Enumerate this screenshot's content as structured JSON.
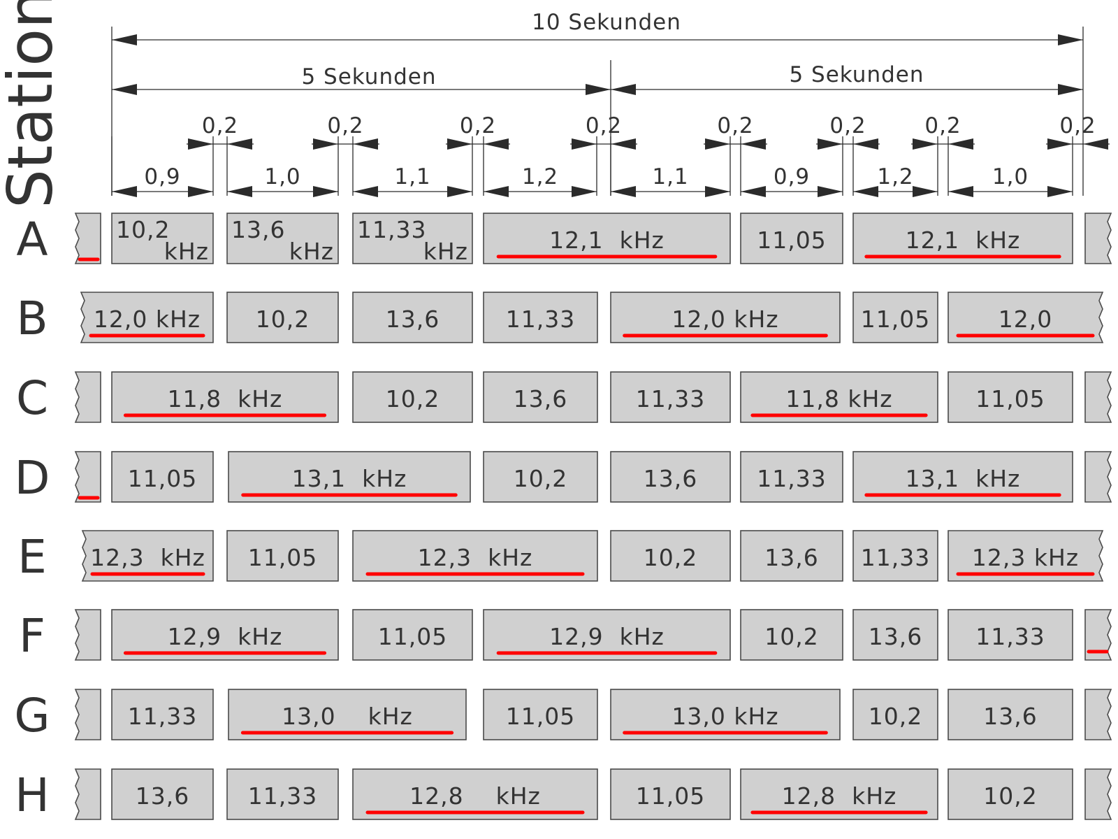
{
  "axis_label": "Station",
  "total_label": "10 Sekunden",
  "half_labels": [
    "5 Sekunden",
    "5 Sekunden"
  ],
  "gap_label": "0,2",
  "durations": [
    "0,9",
    "1,0",
    "1,1",
    "1,2",
    "1,1",
    "0,9",
    "1,2",
    "1,0"
  ],
  "stations": [
    {
      "label": "A",
      "cells": [
        {
          "text": "10,2",
          "sub": "kHz"
        },
        {
          "text": "13,6",
          "sub": "kHz"
        },
        {
          "text": "11,33",
          "sub": "kHz"
        },
        {
          "text": "12,1  kHz",
          "highlight": true
        },
        {
          "text": "11,05"
        },
        {
          "text": "12,1  kHz",
          "highlight": true
        }
      ]
    },
    {
      "label": "B",
      "cells": [
        {
          "text": "12,0 kHz",
          "highlight": true
        },
        {
          "text": "10,2"
        },
        {
          "text": "13,6"
        },
        {
          "text": "11,33"
        },
        {
          "text": "12,0 kHz",
          "highlight": true
        },
        {
          "text": "11,05"
        },
        {
          "text": "12,0",
          "highlight": true
        }
      ]
    },
    {
      "label": "C",
      "cells": [
        {
          "text": "11,8  kHz",
          "highlight": true
        },
        {
          "text": "10,2"
        },
        {
          "text": "13,6"
        },
        {
          "text": "11,33"
        },
        {
          "text": "11,8 kHz",
          "highlight": true
        },
        {
          "text": "11,05"
        }
      ]
    },
    {
      "label": "D",
      "cells": [
        {
          "text": "11,05"
        },
        {
          "text": "13,1  kHz",
          "highlight": true
        },
        {
          "text": "10,2"
        },
        {
          "text": "13,6"
        },
        {
          "text": "11,33"
        },
        {
          "text": "13,1  kHz",
          "highlight": true
        }
      ]
    },
    {
      "label": "E",
      "cells": [
        {
          "text": "12,3  kHz",
          "highlight": true
        },
        {
          "text": "11,05"
        },
        {
          "text": "12,3  kHz",
          "highlight": true
        },
        {
          "text": "10,2"
        },
        {
          "text": "13,6"
        },
        {
          "text": "11,33"
        },
        {
          "text": "12,3 kHz",
          "highlight": true
        }
      ]
    },
    {
      "label": "F",
      "cells": [
        {
          "text": "12,9  kHz",
          "highlight": true
        },
        {
          "text": "11,05"
        },
        {
          "text": "12,9  kHz",
          "highlight": true
        },
        {
          "text": "10,2"
        },
        {
          "text": "13,6"
        },
        {
          "text": "11,33"
        }
      ]
    },
    {
      "label": "G",
      "cells": [
        {
          "text": "11,33"
        },
        {
          "text": "13,0    kHz",
          "highlight": true
        },
        {
          "text": "11,05"
        },
        {
          "text": "13,0 kHz",
          "highlight": true
        },
        {
          "text": "10,2"
        },
        {
          "text": "13,6"
        }
      ]
    },
    {
      "label": "H",
      "cells": [
        {
          "text": "13,6"
        },
        {
          "text": "11,33"
        },
        {
          "text": "12,8    kHz",
          "highlight": true
        },
        {
          "text": "11,05"
        },
        {
          "text": "12,8  kHz",
          "highlight": true
        },
        {
          "text": "10,2"
        }
      ]
    }
  ]
}
